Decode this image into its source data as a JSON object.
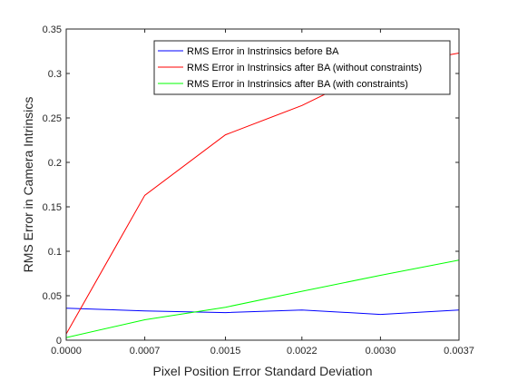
{
  "chart_data": {
    "type": "line",
    "title": "",
    "xlabel": "Pixel Position Error Standard Deviation",
    "ylabel": "RMS Error in Camera Intrinsics",
    "x": [
      0.0,
      0.00074,
      0.0015,
      0.00222,
      0.00296,
      0.0037
    ],
    "xlim": [
      0,
      0.0037
    ],
    "ylim": [
      0,
      0.35
    ],
    "xticks": [
      "0.0000",
      "0.0007",
      "0.0015",
      "0.0022",
      "0.0030",
      "0.0037"
    ],
    "xtick_values": [
      0,
      0.00074,
      0.0015,
      0.00222,
      0.00296,
      0.0037
    ],
    "yticks": [
      "0",
      "0.05",
      "0.1",
      "0.15",
      "0.2",
      "0.25",
      "0.3",
      "0.35"
    ],
    "ytick_values": [
      0,
      0.05,
      0.1,
      0.15,
      0.2,
      0.25,
      0.3,
      0.35
    ],
    "grid": false,
    "legend_position": "top-right",
    "series": [
      {
        "name": "RMS Error in Instrinsics before BA",
        "color": "#0000ff",
        "values": [
          0.036,
          0.033,
          0.031,
          0.034,
          0.029,
          0.034
        ]
      },
      {
        "name": "RMS Error in Instrinsics after BA (without constraints)",
        "color": "#ff0000",
        "values": [
          0.007,
          0.163,
          0.231,
          0.264,
          0.307,
          0.323
        ]
      },
      {
        "name": "RMS Error in Instrinsics after BA (with constraints)",
        "color": "#00ff00",
        "values": [
          0.003,
          0.023,
          0.037,
          0.055,
          0.073,
          0.09
        ]
      }
    ]
  }
}
